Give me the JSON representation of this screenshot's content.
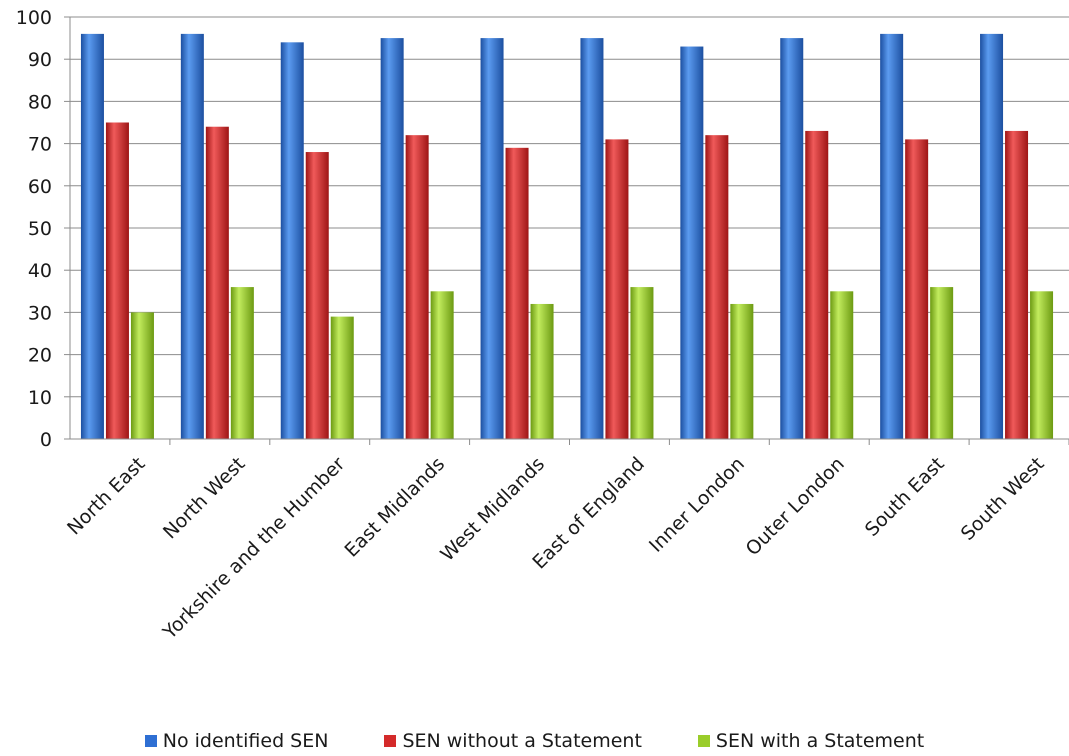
{
  "chart_data": {
    "type": "bar",
    "title": "",
    "xlabel": "",
    "ylabel": "",
    "ylim": [
      0,
      100
    ],
    "yticks": [
      0,
      10,
      20,
      30,
      40,
      50,
      60,
      70,
      80,
      90,
      100
    ],
    "grid": true,
    "legend_position": "bottom",
    "categories": [
      "North East",
      "North West",
      "Yorkshire and the Humber",
      "East Midlands",
      "West Midlands",
      "East of England",
      "Inner London",
      "Outer London",
      "South East",
      "South West"
    ],
    "series": [
      {
        "name": "No identified SEN",
        "color": "#2e6fd3",
        "values": [
          96,
          96,
          94,
          95,
          95,
          95,
          93,
          95,
          96,
          96
        ]
      },
      {
        "name": "SEN without a Statement",
        "color": "#d42a2a",
        "values": [
          75,
          74,
          68,
          72,
          69,
          71,
          72,
          73,
          71,
          73
        ]
      },
      {
        "name": "SEN with a Statement",
        "color": "#9acd2a",
        "values": [
          30,
          36,
          29,
          35,
          32,
          36,
          32,
          35,
          36,
          35
        ]
      }
    ]
  }
}
